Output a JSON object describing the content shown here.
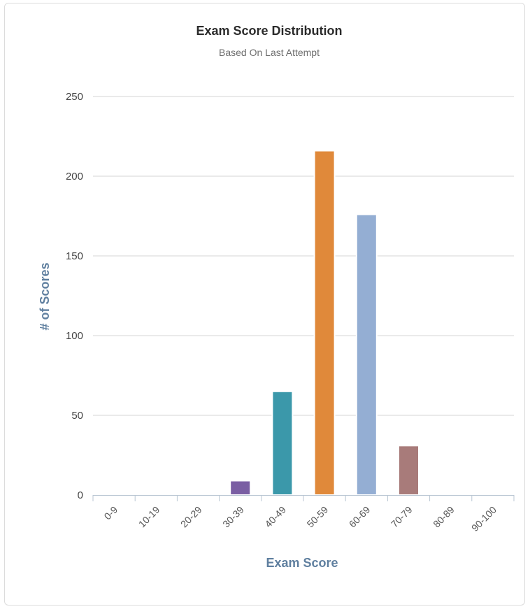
{
  "chart_data": {
    "type": "bar",
    "title": "Exam Score Distribution",
    "subtitle": "Based On Last Attempt",
    "xlabel": "Exam Score",
    "ylabel": "# of Scores",
    "categories": [
      "0-9",
      "10-19",
      "20-29",
      "30-39",
      "40-49",
      "50-59",
      "60-69",
      "70-79",
      "80-89",
      "90-100"
    ],
    "values": [
      0,
      0,
      0,
      9,
      65,
      216,
      176,
      31,
      0,
      0
    ],
    "colors": [
      "#7b7b7b",
      "#7b7b7b",
      "#7b7b7b",
      "#7a5ea3",
      "#3b98aa",
      "#e0893a",
      "#94aed3",
      "#a87b7a",
      "#7b7b7b",
      "#7b7b7b"
    ],
    "ylim": [
      0,
      250
    ],
    "yticks": [
      0,
      50,
      100,
      150,
      200,
      250
    ],
    "grid": true,
    "axis_title_color": "#5f7f9f"
  }
}
